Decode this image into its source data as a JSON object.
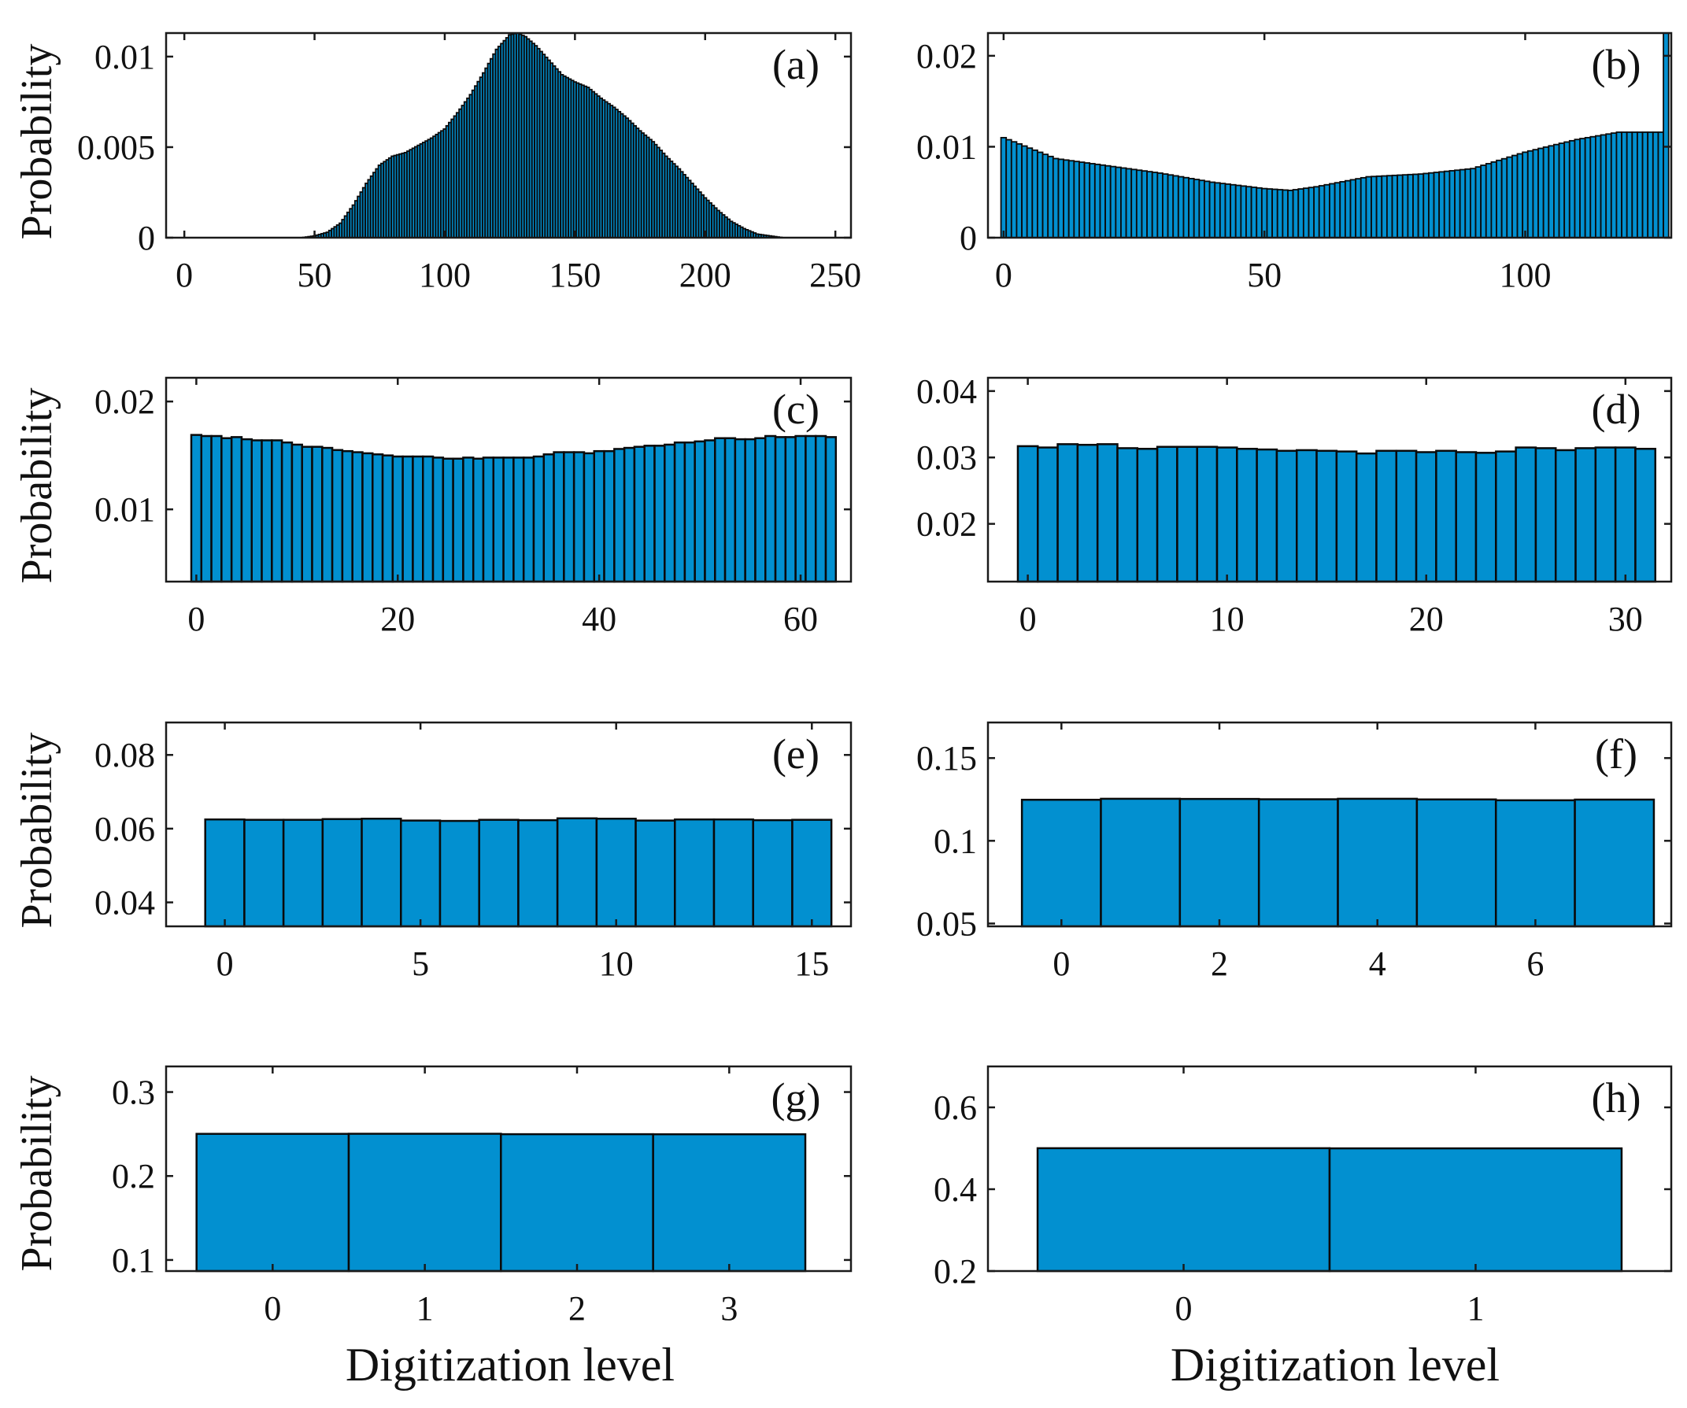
{
  "figure": {
    "xlabel": "Digitization level",
    "ylabel": "Probability",
    "bar_color": "#0290d0",
    "edge_color": "#0a0a0a"
  },
  "chart_data": [
    {
      "id": "a",
      "type": "bar",
      "label": "(a)",
      "xlim": [
        -7,
        256
      ],
      "ylim": [
        0,
        0.0113
      ],
      "xticks": [
        0,
        50,
        100,
        150,
        200,
        250
      ],
      "yticks": [
        0,
        0.005,
        0.01
      ],
      "ytick_labels": [
        "0",
        "0.005",
        "0.01"
      ],
      "bins": 256,
      "profile": [
        [
          0,
          0
        ],
        [
          45,
          0
        ],
        [
          50,
          0.0001
        ],
        [
          55,
          0.0003
        ],
        [
          60,
          0.0008
        ],
        [
          65,
          0.0018
        ],
        [
          70,
          0.003
        ],
        [
          75,
          0.004
        ],
        [
          80,
          0.0045
        ],
        [
          85,
          0.0047
        ],
        [
          90,
          0.0051
        ],
        [
          95,
          0.0055
        ],
        [
          100,
          0.006
        ],
        [
          105,
          0.0069
        ],
        [
          110,
          0.0079
        ],
        [
          115,
          0.0091
        ],
        [
          120,
          0.0104
        ],
        [
          125,
          0.0112
        ],
        [
          128,
          0.0113
        ],
        [
          131,
          0.0111
        ],
        [
          135,
          0.0106
        ],
        [
          140,
          0.0098
        ],
        [
          145,
          0.009
        ],
        [
          150,
          0.0086
        ],
        [
          155,
          0.0083
        ],
        [
          160,
          0.0077
        ],
        [
          165,
          0.0072
        ],
        [
          170,
          0.0066
        ],
        [
          175,
          0.0059
        ],
        [
          180,
          0.0053
        ],
        [
          185,
          0.0045
        ],
        [
          190,
          0.0038
        ],
        [
          195,
          0.003
        ],
        [
          200,
          0.0022
        ],
        [
          205,
          0.0015
        ],
        [
          210,
          0.0009
        ],
        [
          215,
          0.0005
        ],
        [
          220,
          0.0002
        ],
        [
          225,
          0.0001
        ],
        [
          230,
          0
        ],
        [
          255,
          0
        ]
      ]
    },
    {
      "id": "b",
      "type": "bar",
      "label": "(b)",
      "xlim": [
        -3,
        128
      ],
      "ylim": [
        0,
        0.0225
      ],
      "xticks": [
        0,
        50,
        100
      ],
      "yticks": [
        0,
        0.01,
        0.02
      ],
      "ytick_labels": [
        "0",
        "0.01",
        "0.02"
      ],
      "bins": 128,
      "profile": [
        [
          0,
          0.011
        ],
        [
          10,
          0.0087
        ],
        [
          20,
          0.0079
        ],
        [
          30,
          0.0071
        ],
        [
          40,
          0.0061
        ],
        [
          50,
          0.0054
        ],
        [
          55,
          0.0052
        ],
        [
          60,
          0.0056
        ],
        [
          70,
          0.0067
        ],
        [
          80,
          0.007
        ],
        [
          90,
          0.0076
        ],
        [
          100,
          0.0094
        ],
        [
          110,
          0.0108
        ],
        [
          118,
          0.0116
        ],
        [
          126,
          0.0116
        ],
        [
          127,
          0.0225
        ]
      ]
    },
    {
      "id": "c",
      "type": "bar",
      "label": "(c)",
      "xlim": [
        -3,
        65
      ],
      "ylim": [
        0.0033,
        0.0222
      ],
      "xticks": [
        0,
        20,
        40,
        60
      ],
      "yticks": [
        0.01,
        0.02
      ],
      "ytick_labels": [
        "0.01",
        "0.02"
      ],
      "values": [
        0.0169,
        0.0168,
        0.0168,
        0.0166,
        0.0167,
        0.0165,
        0.0164,
        0.0164,
        0.0164,
        0.0162,
        0.016,
        0.0158,
        0.0158,
        0.0157,
        0.0155,
        0.0154,
        0.0153,
        0.0152,
        0.0151,
        0.015,
        0.0149,
        0.0149,
        0.0149,
        0.0149,
        0.0148,
        0.0147,
        0.0147,
        0.0148,
        0.0147,
        0.0148,
        0.0148,
        0.0148,
        0.0148,
        0.0148,
        0.0149,
        0.0151,
        0.0153,
        0.0153,
        0.0153,
        0.0152,
        0.0154,
        0.0154,
        0.0156,
        0.0157,
        0.0158,
        0.0159,
        0.0159,
        0.016,
        0.0162,
        0.0162,
        0.0163,
        0.0164,
        0.0166,
        0.0166,
        0.0165,
        0.0165,
        0.0166,
        0.0168,
        0.0167,
        0.0167,
        0.0168,
        0.0168,
        0.0168,
        0.0167
      ]
    },
    {
      "id": "d",
      "type": "bar",
      "label": "(d)",
      "xlim": [
        -2,
        32.3
      ],
      "ylim": [
        0.0113,
        0.042
      ],
      "xticks": [
        0,
        10,
        20,
        30
      ],
      "yticks": [
        0.02,
        0.03,
        0.04
      ],
      "ytick_labels": [
        "0.02",
        "0.03",
        "0.04"
      ],
      "values": [
        0.0317,
        0.0315,
        0.032,
        0.0319,
        0.032,
        0.0314,
        0.0313,
        0.0316,
        0.0316,
        0.0316,
        0.0315,
        0.0313,
        0.0312,
        0.031,
        0.0311,
        0.031,
        0.0309,
        0.0306,
        0.031,
        0.031,
        0.0308,
        0.031,
        0.0308,
        0.0307,
        0.0309,
        0.0315,
        0.0314,
        0.0311,
        0.0314,
        0.0315,
        0.0315,
        0.0313
      ]
    },
    {
      "id": "e",
      "type": "bar",
      "label": "(e)",
      "xlim": [
        -1.5,
        16.0
      ],
      "ylim": [
        0.0335,
        0.0888
      ],
      "xticks": [
        0,
        5,
        10,
        15
      ],
      "yticks": [
        0.04,
        0.06,
        0.08
      ],
      "ytick_labels": [
        "0.04",
        "0.06",
        "0.08"
      ],
      "values": [
        0.0625,
        0.0624,
        0.0624,
        0.0626,
        0.0627,
        0.0622,
        0.0621,
        0.0624,
        0.0623,
        0.0628,
        0.0627,
        0.0622,
        0.0625,
        0.0625,
        0.0623,
        0.0624
      ]
    },
    {
      "id": "f",
      "type": "bar",
      "label": "(f)",
      "xlim": [
        -0.93,
        7.72
      ],
      "ylim": [
        0.0483,
        0.1715
      ],
      "xticks": [
        0,
        2,
        4,
        6
      ],
      "yticks": [
        0.05,
        0.1,
        0.15
      ],
      "ytick_labels": [
        "0.05",
        "0.1",
        "0.15"
      ],
      "values": [
        0.1248,
        0.1254,
        0.1253,
        0.1251,
        0.1254,
        0.125,
        0.1245,
        0.1249
      ]
    },
    {
      "id": "g",
      "type": "bar",
      "label": "(g)",
      "xlim": [
        -0.7,
        3.8
      ],
      "ylim": [
        0.0868,
        0.3305
      ],
      "xticks": [
        0,
        1,
        2,
        3
      ],
      "yticks": [
        0.1,
        0.2,
        0.3
      ],
      "ytick_labels": [
        "0.1",
        "0.2",
        "0.3"
      ],
      "values": [
        0.2502,
        0.2503,
        0.2498,
        0.2497
      ]
    },
    {
      "id": "h",
      "type": "bar",
      "label": "(h)",
      "xlim": [
        -0.67,
        1.67
      ],
      "ylim": [
        0.2,
        0.7
      ],
      "xticks": [
        0,
        1
      ],
      "yticks": [
        0.2,
        0.4,
        0.6
      ],
      "ytick_labels": [
        "0.2",
        "0.4",
        "0.6"
      ],
      "values": [
        0.5002,
        0.4998
      ]
    }
  ]
}
